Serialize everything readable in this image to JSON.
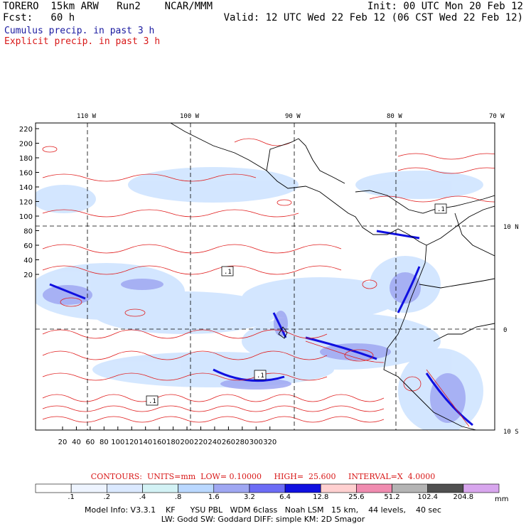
{
  "header": {
    "line1_left": "TORERO  15km ARW   Run2    NCAR/MMM",
    "line1_right": "Init: 00 UTC Mon 20 Feb 12",
    "line2_left": "Fcst:   60 h",
    "line2_right": "Valid: 12 UTC Wed 22 Feb 12 (06 CST Wed 22 Feb 12)",
    "field1": "Cumulus precip. in past 3 h",
    "field2": "Explicit precip. in past 3 h"
  },
  "map": {
    "lon_labels": [
      "110 W",
      "100 W",
      "90 W",
      "80 W",
      "70 W"
    ],
    "lat_labels": [
      "10 N",
      "0",
      "10 S"
    ],
    "y_ticks": [
      "220",
      "200",
      "180",
      "160",
      "140",
      "120",
      "100",
      "80",
      "60",
      "40",
      "20"
    ],
    "x_ticks": [
      "20",
      "40",
      "60",
      "80",
      "100",
      "120",
      "140",
      "160",
      "180",
      "200",
      "220",
      "240",
      "260",
      "280",
      "300",
      "320"
    ],
    "box_labels": [
      ".1",
      ".1",
      ".1",
      ".1"
    ]
  },
  "contours": {
    "text": "CONTOURS:  UNITS=mm  LOW= 0.10000     HIGH=  25.600     INTERVAL=X  4.0000"
  },
  "legend": {
    "labels": [
      ".1",
      ".2",
      ".4",
      ".8",
      "1.6",
      "3.2",
      "6.4",
      "12.8",
      "25.6",
      "51.2",
      "102.4",
      "204.8"
    ],
    "unit": "mm",
    "colors": [
      "#ffffff",
      "#eef4ff",
      "#dbe9ff",
      "#d3f2f5",
      "#bad8ff",
      "#9fa7f2",
      "#6c6cf5",
      "#1010e0",
      "#ffd0d0",
      "#f08cb0",
      "#b4b4b4",
      "#505050",
      "#d8a6ee"
    ]
  },
  "model_info": {
    "line1": "Model Info: V3.3.1    KF      YSU PBL   WDM 6class   Noah LSM   15 km,    44 levels,    40 sec",
    "line2": "LW: Godd SW: Goddard DIFF: simple KM: 2D Smagor"
  }
}
